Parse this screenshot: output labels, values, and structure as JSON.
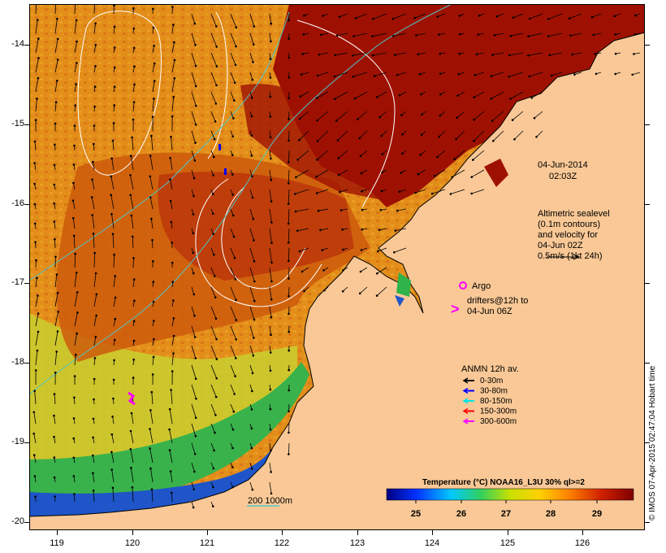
{
  "map": {
    "x_ticks": [
      "119",
      "120",
      "121",
      "122",
      "123",
      "124",
      "125",
      "126"
    ],
    "y_ticks": [
      "-14",
      "-15",
      "-16",
      "-17",
      "-18",
      "-19",
      "-20"
    ],
    "date_line1": "04-Jun-2014",
    "date_line2": "02:03Z",
    "altimetry": [
      "Altimetric sealevel",
      "(0.1m contours)",
      "and velocity for",
      "04-Jun 02Z",
      "0.5m/s (1kt 24h)"
    ],
    "argo_label": "Argo",
    "drifters": [
      "drifters@12h to",
      "04-Jun 06Z"
    ],
    "anmn_title": "ANMN 12h av.",
    "anmn_depths": [
      {
        "label": "0-30m",
        "color": "#000000"
      },
      {
        "label": "30-80m",
        "color": "#0000ff"
      },
      {
        "label": "80-150m",
        "color": "#00e5e5"
      },
      {
        "label": "150-300m",
        "color": "#ff0000"
      },
      {
        "label": "300-600m",
        "color": "#ff00ff"
      }
    ],
    "bathy_label": "200  1000m",
    "colorbar_title": "Temperature (°C) NOAA16_L3U 30% ql>=2",
    "colorbar_ticks": [
      "25",
      "26",
      "27",
      "28",
      "29"
    ],
    "credit": "© IMOS 07-Apr-2015 02:47:04 Hobart time",
    "colors": {
      "land": "#f9c896",
      "sst_hot": "#9e1102",
      "sst_warm": "#d85a06",
      "sst_mid": "#e9a01c",
      "sst_cool": "#c8d62e",
      "sst_green": "#2fb34a",
      "sst_cold": "#1340b0"
    }
  }
}
